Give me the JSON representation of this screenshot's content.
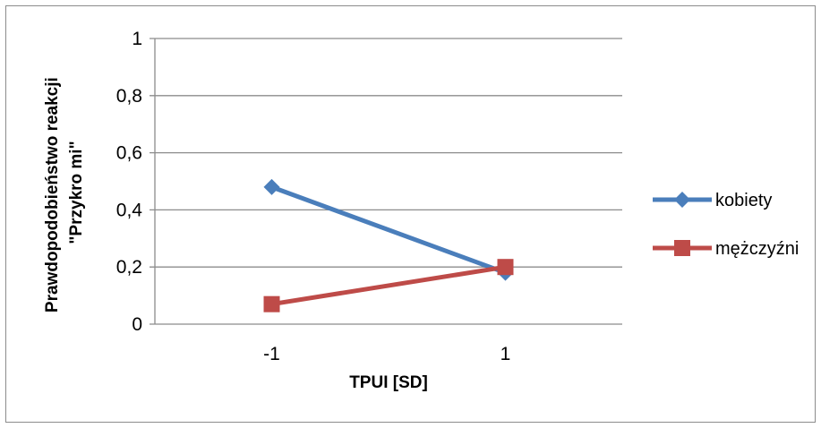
{
  "chart_data": {
    "type": "line",
    "title": "",
    "xlabel": "TPUI [SD]",
    "ylabel_lines": [
      "Prawdopodobieństwo reakcji",
      "\"Przykro mi\""
    ],
    "categories": [
      "-1",
      "1"
    ],
    "ylim": [
      0,
      1
    ],
    "yticks": [
      "0",
      "0,2",
      "0,4",
      "0,6",
      "0,8",
      "1"
    ],
    "ytick_values": [
      0,
      0.2,
      0.4,
      0.6,
      0.8,
      1
    ],
    "grid": true,
    "legend_position": "right",
    "series": [
      {
        "name": "kobiety",
        "values": [
          0.48,
          0.18
        ],
        "color": "#4a7ebb",
        "marker": "diamond"
      },
      {
        "name": "mężczyźni",
        "values": [
          0.07,
          0.2
        ],
        "color": "#be4b48",
        "marker": "square"
      }
    ]
  }
}
